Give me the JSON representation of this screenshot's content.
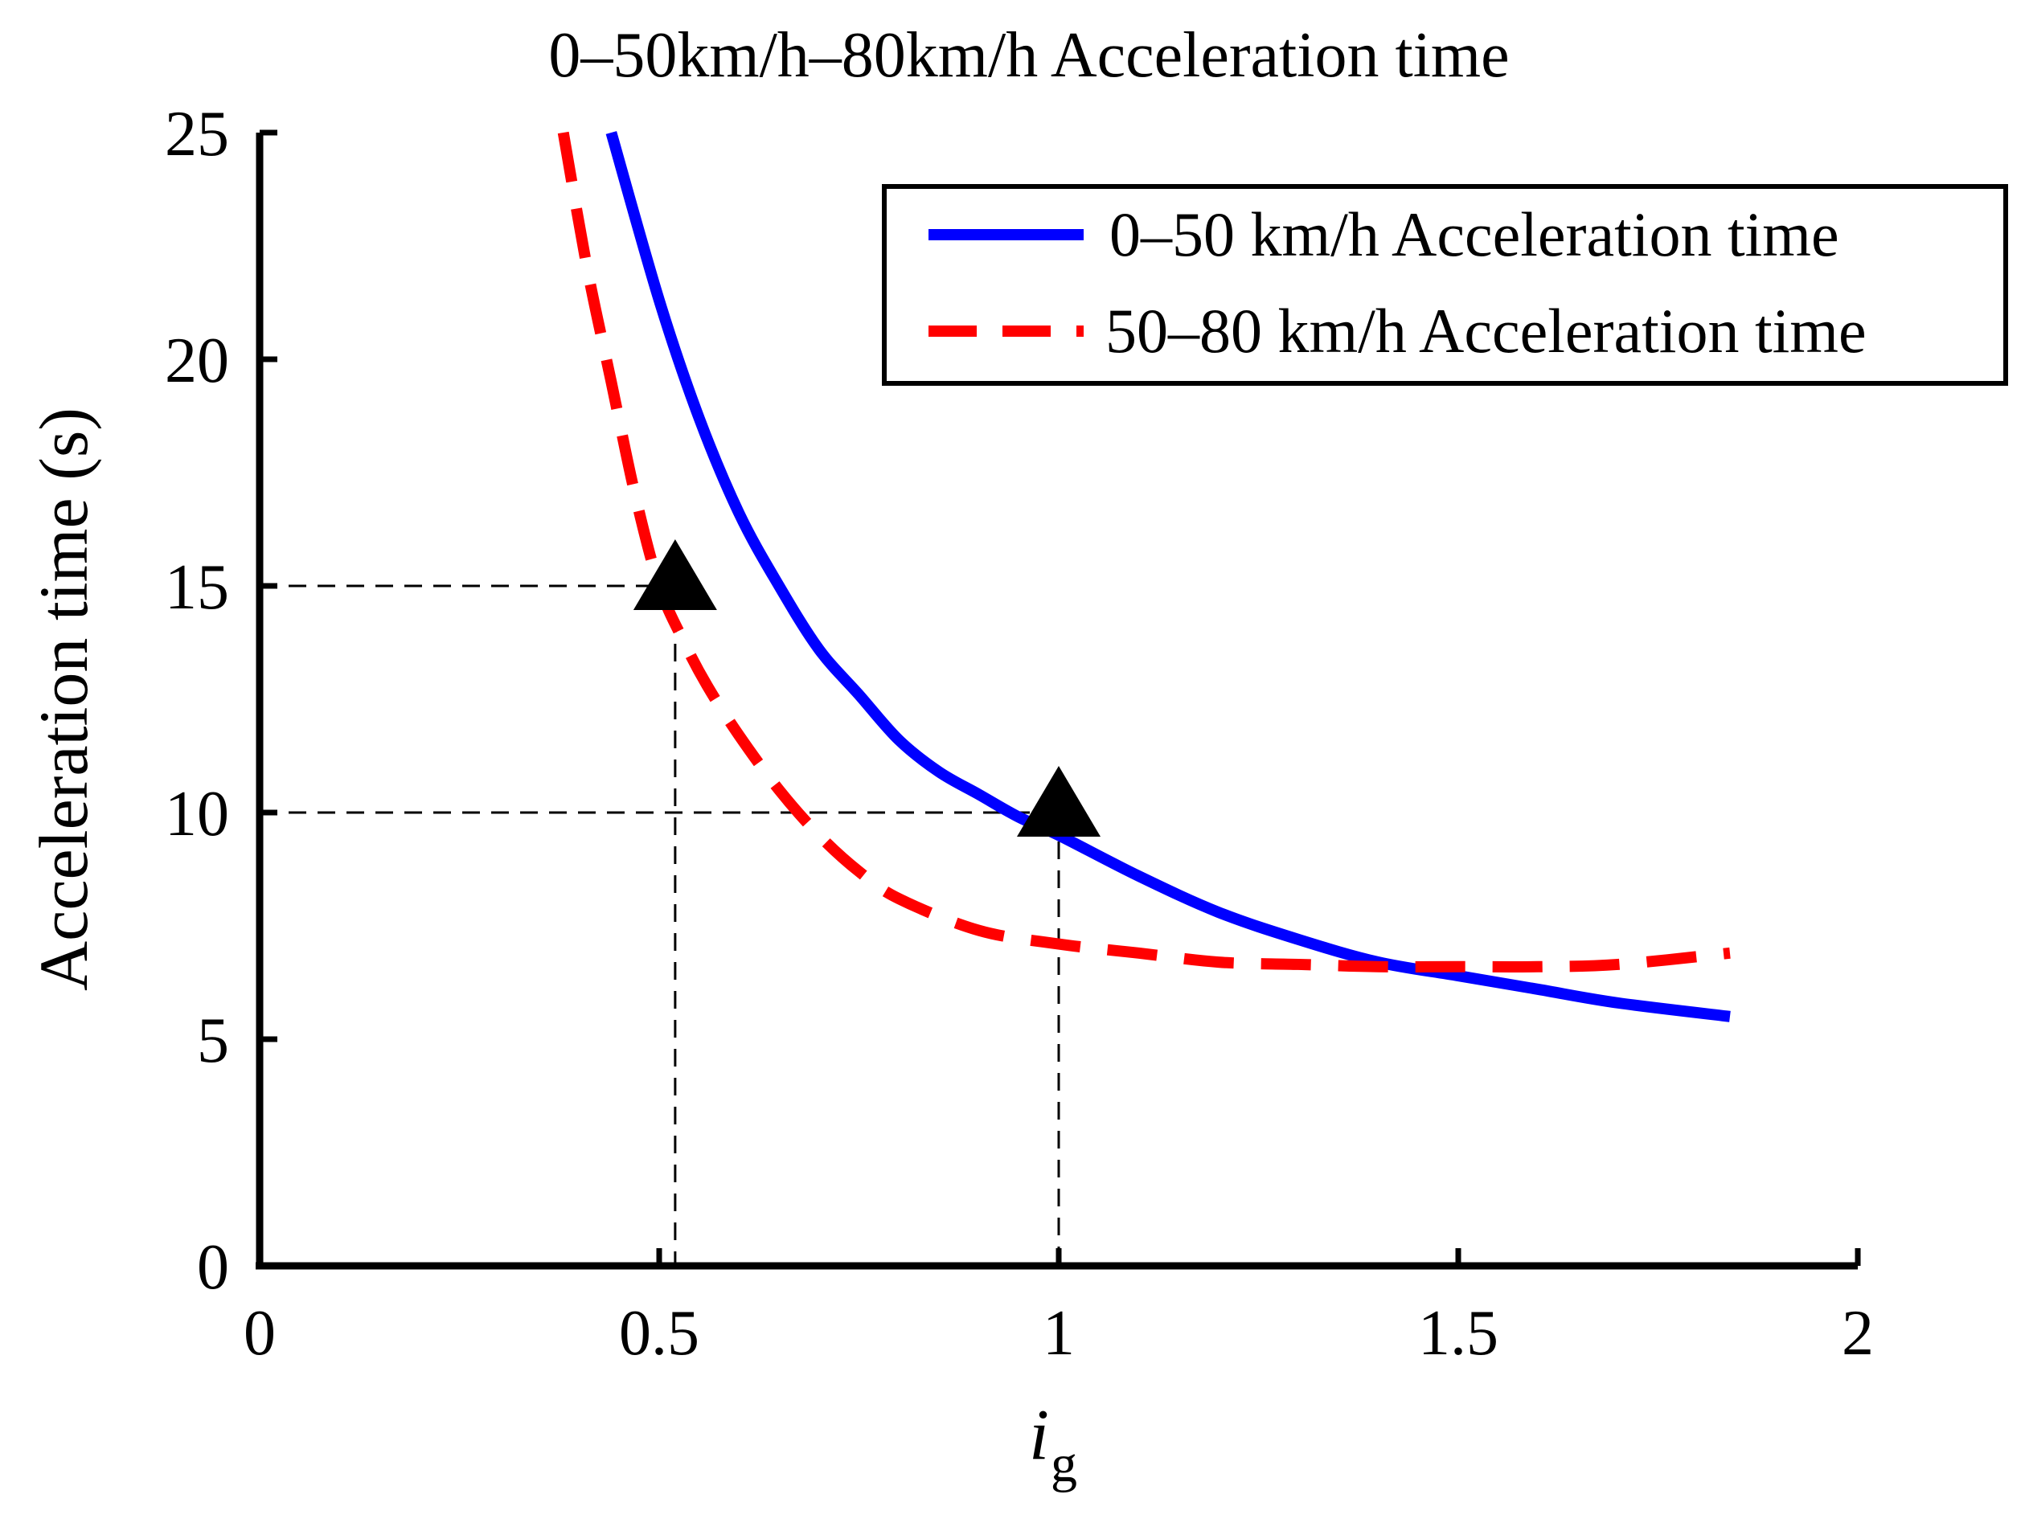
{
  "chart_data": {
    "type": "line",
    "title": "0–50km/h–80km/h Acceleration time",
    "xlabel_main": "i",
    "xlabel_sub": "g",
    "ylabel": "Acceleration time (s)",
    "xlim": [
      0,
      2
    ],
    "ylim": [
      0,
      25
    ],
    "xticks": [
      0,
      0.5,
      1,
      1.5,
      2
    ],
    "xtick_labels": [
      "0",
      "0.5",
      "1",
      "1.5",
      "2"
    ],
    "yticks": [
      0,
      5,
      10,
      15,
      20,
      25
    ],
    "ytick_labels": [
      "0",
      "5",
      "10",
      "15",
      "20",
      "25"
    ],
    "legend_position": "top-right",
    "series": [
      {
        "name": "0–50 km/h Acceleration time",
        "color": "#0000ff",
        "style": "solid",
        "x": [
          0.44,
          0.5,
          0.55,
          0.6,
          0.65,
          0.7,
          0.75,
          0.8,
          0.85,
          0.9,
          0.95,
          1.0,
          1.1,
          1.2,
          1.3,
          1.4,
          1.5,
          1.6,
          1.7,
          1.84
        ],
        "y": [
          25.0,
          21.3,
          18.7,
          16.6,
          15.0,
          13.6,
          12.6,
          11.6,
          10.9,
          10.4,
          9.9,
          9.5,
          8.6,
          7.8,
          7.2,
          6.7,
          6.4,
          6.1,
          5.8,
          5.5
        ]
      },
      {
        "name": "50–80 km/h Acceleration time",
        "color": "#ff0000",
        "style": "dashed",
        "x": [
          0.38,
          0.41,
          0.44,
          0.47,
          0.5,
          0.53,
          0.56,
          0.6,
          0.65,
          0.7,
          0.75,
          0.8,
          0.9,
          1.0,
          1.1,
          1.2,
          1.3,
          1.4,
          1.5,
          1.6,
          1.7,
          1.84
        ],
        "y": [
          25.0,
          22.0,
          19.5,
          17.0,
          15.0,
          13.8,
          12.8,
          11.7,
          10.5,
          9.5,
          8.7,
          8.1,
          7.4,
          7.1,
          6.9,
          6.7,
          6.65,
          6.6,
          6.6,
          6.6,
          6.65,
          6.9
        ]
      }
    ],
    "markers": [
      {
        "label": "triangle-marker-1",
        "x": 0.52,
        "y": 15
      },
      {
        "label": "triangle-marker-2",
        "x": 1.0,
        "y": 10
      }
    ],
    "reference_lines": [
      {
        "x": 0.52,
        "y": 15
      },
      {
        "x": 1.0,
        "y": 10
      }
    ]
  }
}
